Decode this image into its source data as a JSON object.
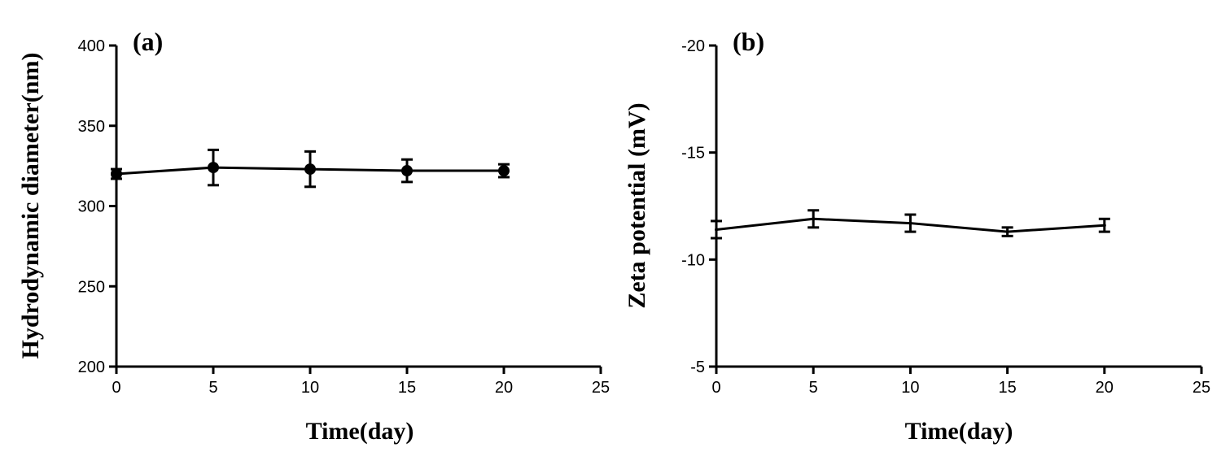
{
  "chart_data": [
    {
      "type": "line",
      "panel_label": "(a)",
      "title": "",
      "xlabel": "Time(day)",
      "ylabel": "Hydrodynamic diameter(nm)",
      "xlim": [
        0,
        25
      ],
      "ylim": [
        200,
        400
      ],
      "xticks": [
        0,
        5,
        10,
        15,
        20,
        25
      ],
      "yticks": [
        200,
        250,
        300,
        350,
        400
      ],
      "grid": false,
      "marker": "circle",
      "series": [
        {
          "name": "Hydrodynamic diameter",
          "x": [
            0,
            5,
            10,
            15,
            20
          ],
          "y": [
            320,
            324,
            323,
            322,
            322
          ],
          "error": [
            3,
            11,
            11,
            7,
            4
          ]
        }
      ]
    },
    {
      "type": "line",
      "panel_label": "(b)",
      "title": "",
      "xlabel": "Time(day)",
      "ylabel": "Zeta potential (mV)",
      "xlim": [
        0,
        25
      ],
      "ylim": [
        -5,
        -20
      ],
      "xticks": [
        0,
        5,
        10,
        15,
        20,
        25
      ],
      "yticks": [
        -5,
        -10,
        -15,
        -20
      ],
      "ytick_labels": [
        "-5",
        "-10",
        "-15",
        "-20"
      ],
      "grid": false,
      "marker": "none",
      "series": [
        {
          "name": "Zeta potential",
          "x": [
            0,
            5,
            10,
            15,
            20
          ],
          "y": [
            -11.4,
            -11.9,
            -11.7,
            -11.3,
            -11.6
          ],
          "error": [
            0.4,
            0.4,
            0.4,
            0.2,
            0.3
          ]
        }
      ]
    }
  ]
}
